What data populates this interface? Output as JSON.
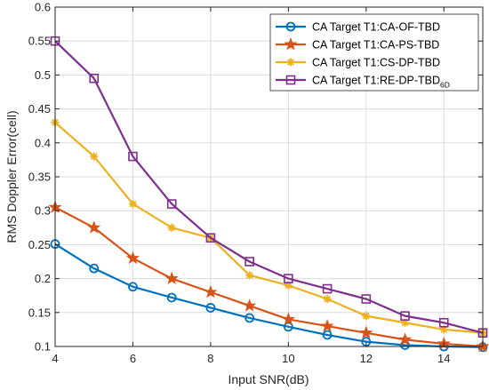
{
  "chart_data": {
    "type": "line",
    "title": "",
    "xlabel": "Input SNR(dB)",
    "ylabel": "RMS Doppler Error(cell)",
    "xlim": [
      4,
      15
    ],
    "ylim": [
      0.1,
      0.6
    ],
    "xticks": [
      4,
      6,
      8,
      10,
      12,
      14
    ],
    "yticks": [
      0.1,
      0.15,
      0.2,
      0.25,
      0.3,
      0.35,
      0.4,
      0.45,
      0.5,
      0.55,
      0.6
    ],
    "xtick_labels": [
      "4",
      "6",
      "8",
      "10",
      "12",
      "14"
    ],
    "ytick_labels": [
      "0.1",
      "0.15",
      "0.2",
      "0.25",
      "0.3",
      "0.35",
      "0.4",
      "0.45",
      "0.5",
      "0.55",
      "0.6"
    ],
    "grid": true,
    "legend_position": "top-right",
    "x": [
      4,
      5,
      6,
      7,
      8,
      9,
      10,
      11,
      12,
      13,
      14,
      15
    ],
    "series": [
      {
        "name": "CA Target T1:CA-OF-TBD",
        "name_sub": "",
        "color": "#0072BD",
        "marker": "circle",
        "values": [
          0.251,
          0.215,
          0.188,
          0.172,
          0.157,
          0.142,
          0.129,
          0.117,
          0.107,
          0.102,
          0.1,
          0.099
        ]
      },
      {
        "name": "CA Target T1:CA-PS-TBD",
        "name_sub": "",
        "color": "#D95319",
        "marker": "star",
        "values": [
          0.305,
          0.275,
          0.23,
          0.2,
          0.18,
          0.16,
          0.14,
          0.13,
          0.12,
          0.11,
          0.104,
          0.1
        ]
      },
      {
        "name": "CA Target T1:CS-DP-TBD",
        "name_sub": "",
        "color": "#EDB120",
        "marker": "asterisk",
        "values": [
          0.43,
          0.38,
          0.31,
          0.275,
          0.26,
          0.205,
          0.19,
          0.17,
          0.145,
          0.135,
          0.125,
          0.12
        ]
      },
      {
        "name": "CA Target T1:RE-DP-TBD",
        "name_sub": "6D",
        "color": "#7E2F8E",
        "marker": "square",
        "values": [
          0.55,
          0.495,
          0.38,
          0.31,
          0.26,
          0.225,
          0.2,
          0.185,
          0.17,
          0.145,
          0.135,
          0.12
        ]
      }
    ]
  }
}
